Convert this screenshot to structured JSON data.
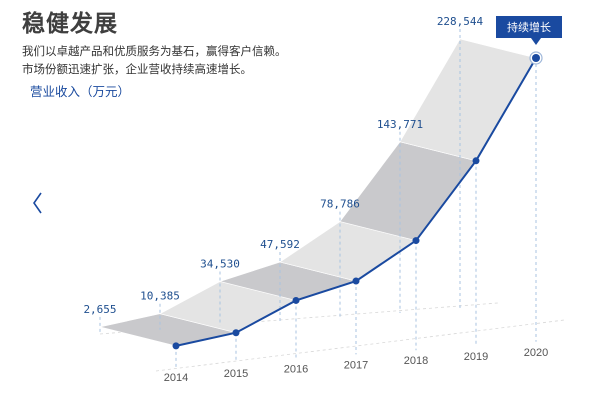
{
  "header": {
    "title": "稳健发展",
    "intro_line1": "我们以卓越产品和优质服务为基石，赢得客户信赖。",
    "intro_line2": "市场份额迅速扩张，企业营收持续高速增长。"
  },
  "icons": {
    "prev": "chevron-left-icon"
  },
  "colors": {
    "accent": "#1a4aa0",
    "label": "#1f4f8f",
    "badge": "#1a4aa0",
    "ribbon_light": "#e4e4e4",
    "ribbon_dark": "#c9c9cc"
  },
  "chart_data": {
    "type": "line",
    "ylabel": "营业收入（万元）",
    "categories": [
      "2014",
      "2015",
      "2016",
      "2017",
      "2018",
      "2019",
      "2020"
    ],
    "series": [
      {
        "values": [
          2655,
          10385,
          34530,
          47592,
          78786,
          143771,
          228544
        ]
      }
    ],
    "value_labels": [
      "2,655",
      "10,385",
      "34,530",
      "47,592",
      "78,786",
      "143,771",
      "228,544"
    ],
    "annotation": "持续增长",
    "grid": false,
    "legend": "none"
  }
}
